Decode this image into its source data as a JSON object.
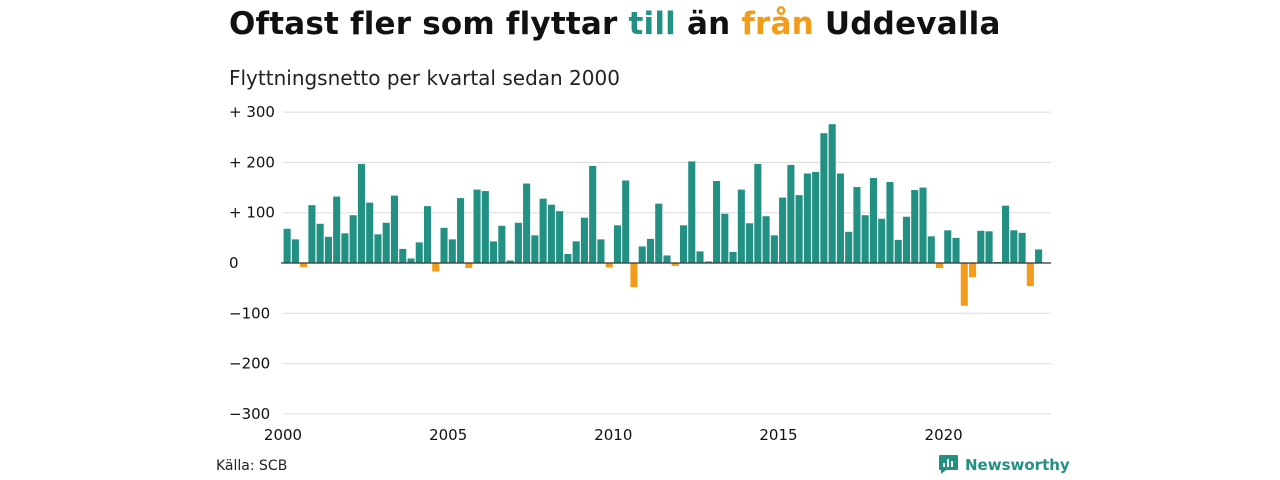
{
  "title": {
    "part1": "Oftast fler som flyttar ",
    "till": "till",
    "part2": " än ",
    "fran": "från",
    "part3": " Uddevalla"
  },
  "subtitle": "Flyttningsnetto per kvartal sedan 2000",
  "source": "Källa: SCB",
  "brand": "Newsworthy",
  "colors": {
    "positive": "#229184",
    "negative": "#f39c1c",
    "grid": "#dddddd"
  },
  "chart_data": {
    "type": "bar",
    "title": "Oftast fler som flyttar till än från Uddevalla",
    "subtitle": "Flyttningsnetto per kvartal sedan 2000",
    "xlabel": "",
    "ylabel": "",
    "ylim": [
      -300,
      300
    ],
    "yticks": [
      300,
      200,
      100,
      0,
      -100,
      -200,
      -300
    ],
    "ytick_labels": [
      "+ 300",
      "+ 200",
      "+ 100",
      "0",
      "−100",
      "−200",
      "−300"
    ],
    "xlim": [
      2000,
      2023.25
    ],
    "xticks": [
      2000,
      2005,
      2010,
      2015,
      2020
    ],
    "xtick_labels": [
      "2000",
      "2005",
      "2010",
      "2015",
      "2020"
    ],
    "grid": true,
    "legend": "none",
    "start_period": "2000 Q1",
    "frequency": "quarterly",
    "values": [
      68,
      47,
      -8,
      115,
      78,
      52,
      132,
      59,
      95,
      197,
      120,
      57,
      80,
      134,
      28,
      9,
      41,
      113,
      -17,
      70,
      47,
      129,
      -10,
      146,
      143,
      43,
      74,
      5,
      80,
      158,
      55,
      128,
      116,
      103,
      18,
      43,
      90,
      193,
      47,
      -9,
      75,
      164,
      -48,
      33,
      48,
      118,
      15,
      -6,
      75,
      202,
      23,
      3,
      163,
      98,
      22,
      146,
      79,
      197,
      93,
      55,
      130,
      195,
      135,
      178,
      181,
      258,
      276,
      178,
      62,
      151,
      95,
      169,
      88,
      161,
      46,
      92,
      145,
      150,
      53,
      -10,
      65,
      50,
      -85,
      -28,
      64,
      63,
      2,
      114,
      65,
      60,
      -46,
      27
    ]
  }
}
